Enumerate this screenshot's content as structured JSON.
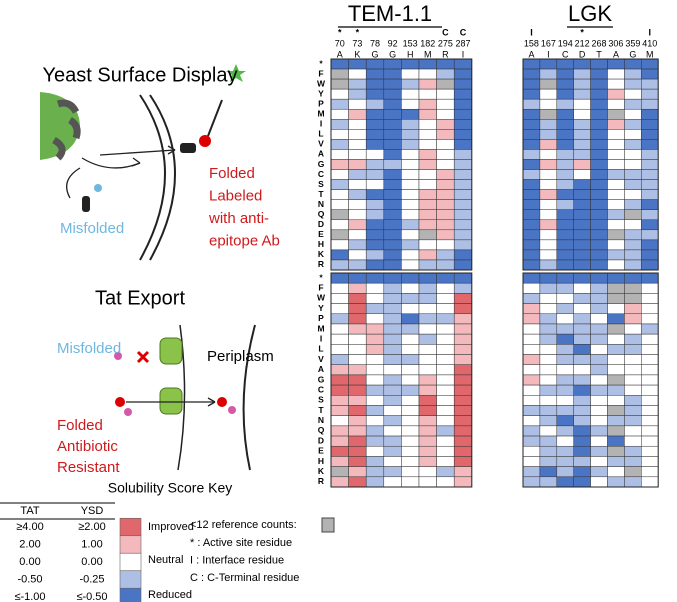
{
  "left": {
    "ysd_title": "Yeast Surface Display",
    "ysd_misfolded": "Misfolded",
    "ysd_folded": [
      "Folded",
      "Labeled",
      "with anti-",
      "epitope Ab"
    ],
    "tat_title": "Tat Export",
    "tat_misfolded": "Misfolded",
    "tat_folded": [
      "Folded",
      "Antibiotic",
      "Resistant"
    ],
    "periplasm": "Periplasm"
  },
  "key": {
    "title": "Solubility Score Key",
    "headers": [
      "TAT",
      "YSD"
    ],
    "rows": [
      {
        "tat": {
          "value": 4,
          "label": "≥4.00"
        },
        "ysd": "≥2.00",
        "color": "#e0676b"
      },
      {
        "tat": {
          "value": 2,
          "label": "2.00"
        },
        "ysd": "1.00",
        "color": "#f3b9bc"
      },
      {
        "tat": {
          "value": 0,
          "label": "0.00"
        },
        "ysd": "0.00",
        "color": "#ffffff"
      },
      {
        "tat": {
          "value": -0.5,
          "label": "-0.50"
        },
        "ysd": "-0.25",
        "color": "#aebfe6"
      },
      {
        "tat": {
          "value": -1,
          "label": "≤-1.00"
        },
        "ysd": "≤-0.50",
        "color": "#4a74c4"
      }
    ],
    "labels": [
      "Improved",
      "Neutral",
      "Reduced"
    ],
    "low_count_label": "<12 reference counts:",
    "low_count_color": "#b3b3b3",
    "notes": [
      "* : Active site residue",
      "I : Interface residue",
      "C : C-Terminal residue"
    ]
  },
  "row_labels": [
    "*",
    "F",
    "W",
    "Y",
    "P",
    "M",
    "I",
    "L",
    "V",
    "A",
    "G",
    "C",
    "S",
    "T",
    "N",
    "Q",
    "D",
    "E",
    "H",
    "K",
    "R"
  ],
  "panels": [
    {
      "title": "TEM-1.1",
      "columns": [
        {
          "annot": "*",
          "pos": 70,
          "aa": "A"
        },
        {
          "annot": "*",
          "pos": 73,
          "aa": "K"
        },
        {
          "annot": null,
          "pos": 78,
          "aa": "G"
        },
        {
          "annot": null,
          "pos": 92,
          "aa": "G"
        },
        {
          "annot": null,
          "pos": 153,
          "aa": "H"
        },
        {
          "annot": null,
          "pos": 182,
          "aa": "M"
        },
        {
          "annot": "C",
          "pos": 275,
          "aa": "R"
        },
        {
          "annot": "C",
          "pos": 287,
          "aa": "I"
        }
      ],
      "top": [
        [
          -1,
          -1,
          -1,
          -1,
          -1,
          -1,
          -1,
          -1
        ],
        [
          null,
          0,
          -1,
          -1,
          0,
          0,
          -0.5,
          -1
        ],
        [
          null,
          -0.5,
          -1,
          -1,
          -0.5,
          2,
          null,
          -1
        ],
        [
          0,
          -0.5,
          -1,
          -1,
          0,
          0,
          0,
          -1
        ],
        [
          -0.5,
          0,
          -0.5,
          -1,
          0,
          2,
          0,
          -1
        ],
        [
          0,
          2,
          -1,
          -1,
          -1,
          2,
          0,
          -1
        ],
        [
          -0.5,
          0,
          -1,
          -1,
          -0.5,
          0,
          2,
          -1
        ],
        [
          0,
          0,
          -1,
          -1,
          -0.5,
          0,
          2,
          -1
        ],
        [
          -0.5,
          0,
          -1,
          -1,
          -0.5,
          0,
          0,
          -1
        ],
        [
          0,
          0,
          0,
          -1,
          0,
          2,
          0,
          -0.5
        ],
        [
          2,
          2,
          -0.5,
          -0.5,
          0,
          2,
          0,
          -0.5
        ],
        [
          0,
          -0.5,
          -0.5,
          -1,
          0,
          0,
          2,
          -0.5
        ],
        [
          -0.5,
          0,
          0,
          -1,
          0,
          0,
          2,
          -0.5
        ],
        [
          0,
          -0.5,
          -1,
          -1,
          0,
          2,
          2,
          -0.5
        ],
        [
          0,
          0,
          -0.5,
          -1,
          0,
          2,
          2,
          -0.5
        ],
        [
          null,
          0,
          -0.5,
          -1,
          0,
          2,
          2,
          -0.5
        ],
        [
          0,
          2,
          -1,
          -1,
          -0.5,
          2,
          2,
          -0.5
        ],
        [
          null,
          0,
          -1,
          -1,
          0,
          null,
          2,
          -0.5
        ],
        [
          0,
          -0.5,
          -1,
          -1,
          -0.5,
          0,
          0,
          -0.5
        ],
        [
          -1,
          0,
          -0.5,
          -1,
          0,
          2,
          -0.5,
          -1
        ],
        [
          -0.5,
          -0.5,
          -1,
          -1,
          0,
          -0.5,
          -0.5,
          -1
        ]
      ],
      "bottom": [
        [
          -1,
          -1,
          -1,
          -1,
          -1,
          -1,
          -1,
          -1
        ],
        [
          0,
          2,
          0,
          -0.5,
          0,
          -0.5,
          0,
          -0.5
        ],
        [
          0,
          4,
          0,
          -0.5,
          -0.5,
          -0.5,
          0,
          4
        ],
        [
          0,
          4,
          -0.5,
          -0.5,
          0,
          0,
          0,
          4
        ],
        [
          -0.5,
          4,
          0,
          -0.5,
          -1,
          -0.5,
          -0.5,
          2
        ],
        [
          0,
          2,
          2,
          -0.5,
          -0.5,
          0,
          0,
          2
        ],
        [
          0,
          0,
          2,
          -0.5,
          0,
          -0.5,
          0,
          2
        ],
        [
          0,
          0,
          2,
          -0.5,
          0,
          0,
          0,
          2
        ],
        [
          -0.5,
          0,
          0,
          -0.5,
          -0.5,
          0,
          0,
          2
        ],
        [
          2,
          2,
          0,
          0,
          0,
          0,
          0,
          4
        ],
        [
          4,
          4,
          0,
          -0.5,
          0,
          2,
          0,
          4
        ],
        [
          4,
          4,
          -0.5,
          -0.5,
          -0.5,
          2,
          0,
          4
        ],
        [
          2,
          2,
          0,
          -0.5,
          0,
          4,
          0,
          4
        ],
        [
          2,
          4,
          -0.5,
          0,
          0,
          4,
          0,
          4
        ],
        [
          0,
          2,
          0,
          -0.5,
          0,
          2,
          0,
          4
        ],
        [
          2,
          2,
          -0.5,
          0,
          0,
          2,
          -0.5,
          4
        ],
        [
          2,
          4,
          -0.5,
          -0.5,
          0,
          2,
          0,
          4
        ],
        [
          4,
          4,
          0,
          -0.5,
          0,
          2,
          0,
          4
        ],
        [
          2,
          4,
          -0.5,
          0,
          0,
          2,
          0,
          4
        ],
        [
          null,
          2,
          -0.5,
          -0.5,
          0,
          0,
          -0.5,
          2
        ],
        [
          2,
          4,
          -0.5,
          0,
          0,
          0,
          0,
          2
        ]
      ]
    },
    {
      "title": "LGK",
      "columns": [
        {
          "annot": "I",
          "pos": 158,
          "aa": "A"
        },
        {
          "annot": null,
          "pos": 167,
          "aa": "I"
        },
        {
          "annot": null,
          "pos": 194,
          "aa": "C"
        },
        {
          "annot": "*",
          "pos": 212,
          "aa": "D"
        },
        {
          "annot": null,
          "pos": 268,
          "aa": "T"
        },
        {
          "annot": null,
          "pos": 306,
          "aa": "A"
        },
        {
          "annot": null,
          "pos": 359,
          "aa": "G"
        },
        {
          "annot": "I",
          "pos": 410,
          "aa": "M"
        }
      ],
      "top": [
        [
          -1,
          -1,
          -1,
          -1,
          -1,
          -1,
          -1,
          -1
        ],
        [
          -1,
          -0.5,
          -1,
          -0.5,
          -1,
          0,
          -0.5,
          -1
        ],
        [
          -1,
          null,
          -1,
          -0.5,
          -1,
          0,
          -0.5,
          -0.5
        ],
        [
          -1,
          0,
          -1,
          -0.5,
          -1,
          2,
          0,
          -0.5
        ],
        [
          -0.5,
          0,
          -0.5,
          0,
          -1,
          0,
          -0.5,
          -0.5
        ],
        [
          -1,
          null,
          -1,
          0,
          -1,
          null,
          0,
          -1
        ],
        [
          -1,
          -0.5,
          -1,
          -0.5,
          -1,
          2,
          -0.5,
          -1
        ],
        [
          -1,
          -0.5,
          -1,
          -0.5,
          -1,
          0,
          0,
          -1
        ],
        [
          -1,
          2,
          -1,
          -0.5,
          -1,
          0,
          -0.5,
          -1
        ],
        [
          -0.5,
          0,
          -0.5,
          -0.5,
          -1,
          0,
          0,
          -0.5
        ],
        [
          -1,
          2,
          -0.5,
          2,
          -1,
          0,
          0,
          -0.5
        ],
        [
          -0.5,
          0,
          -0.5,
          0,
          -1,
          -0.5,
          -0.5,
          -0.5
        ],
        [
          -1,
          0,
          -0.5,
          -1,
          -1,
          0,
          -0.5,
          -0.5
        ],
        [
          -1,
          2,
          -1,
          -1,
          -1,
          0,
          0,
          -0.5
        ],
        [
          -1,
          0,
          -0.5,
          -1,
          -1,
          0,
          -0.5,
          -1
        ],
        [
          -1,
          0,
          -1,
          -1,
          -1,
          -0.5,
          null,
          -0.5
        ],
        [
          -1,
          2,
          -1,
          -1,
          -1,
          0,
          0,
          -1
        ],
        [
          -1,
          0,
          -1,
          -1,
          -1,
          null,
          -0.5,
          -0.5
        ],
        [
          -1,
          0,
          -1,
          -1,
          -1,
          0,
          -0.5,
          -1
        ],
        [
          -1,
          0,
          -1,
          -1,
          -1,
          -0.5,
          -0.5,
          -1
        ],
        [
          -1,
          -0.5,
          -1,
          -1,
          -1,
          0,
          -0.5,
          -1
        ]
      ],
      "bottom": [
        [
          -1,
          -1,
          -1,
          -1,
          -1,
          -1,
          -1,
          -1
        ],
        [
          0,
          -0.5,
          -0.5,
          0,
          -0.5,
          null,
          null,
          0
        ],
        [
          -0.5,
          0,
          0,
          -0.5,
          -0.5,
          null,
          null,
          0
        ],
        [
          2,
          0,
          -0.5,
          0,
          -0.5,
          0,
          2,
          0
        ],
        [
          2,
          -0.5,
          0,
          -0.5,
          0,
          -1,
          2,
          0
        ],
        [
          0,
          -0.5,
          -0.5,
          -0.5,
          -0.5,
          null,
          0,
          -0.5
        ],
        [
          0,
          -0.5,
          -1,
          -0.5,
          -0.5,
          0,
          -0.5,
          0
        ],
        [
          0,
          0,
          -0.5,
          -1,
          0,
          -0.5,
          -0.5,
          0
        ],
        [
          2,
          0,
          -0.5,
          -0.5,
          -0.5,
          0,
          0,
          0
        ],
        [
          0,
          0,
          0,
          0,
          -0.5,
          0,
          0,
          0
        ],
        [
          2,
          0,
          -0.5,
          -0.5,
          0,
          null,
          0,
          0
        ],
        [
          0,
          -0.5,
          -0.5,
          -1,
          -0.5,
          -0.5,
          0,
          0
        ],
        [
          0,
          0,
          0,
          -0.5,
          0,
          0,
          -0.5,
          0
        ],
        [
          -0.5,
          -0.5,
          -0.5,
          -0.5,
          0,
          null,
          -0.5,
          0
        ],
        [
          0,
          -0.5,
          -1,
          -0.5,
          0,
          -0.5,
          -0.5,
          0
        ],
        [
          -0.5,
          0,
          -0.5,
          -1,
          -0.5,
          null,
          0,
          0
        ],
        [
          -0.5,
          -0.5,
          0,
          -1,
          0,
          -1,
          0,
          0
        ],
        [
          0,
          -0.5,
          -0.5,
          -1,
          -0.5,
          null,
          -0.5,
          0
        ],
        [
          0,
          -0.5,
          -0.5,
          -0.5,
          0,
          -0.5,
          -0.5,
          0
        ],
        [
          -0.5,
          -1,
          -0.5,
          -1,
          -0.5,
          0,
          null,
          0
        ],
        [
          -0.5,
          -0.5,
          -1,
          -1,
          0,
          -0.5,
          -0.5,
          0
        ]
      ]
    }
  ]
}
